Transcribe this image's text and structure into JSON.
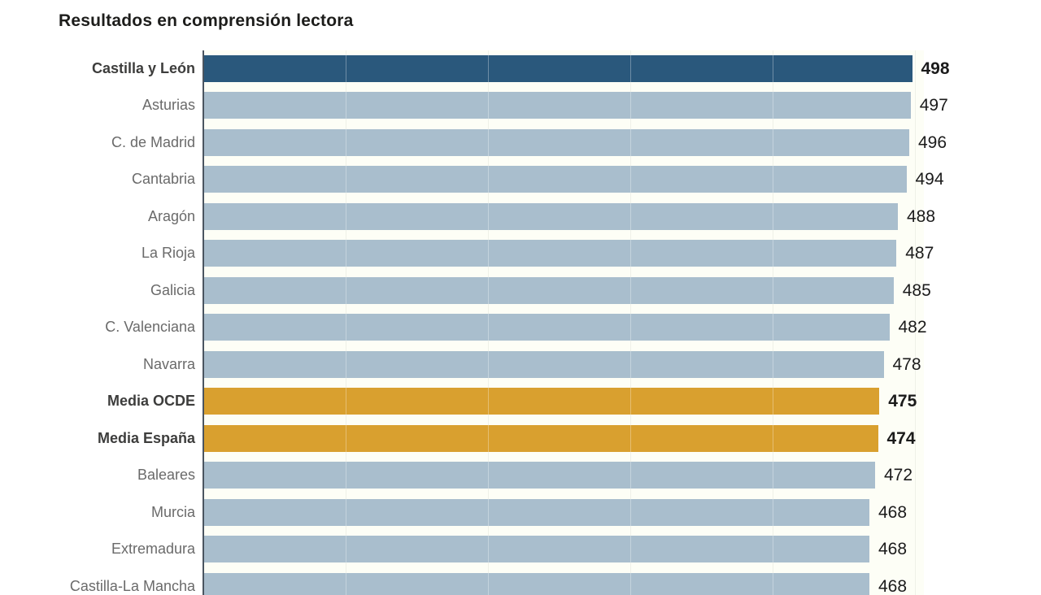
{
  "title": "Resultados en comprensión lectora",
  "colors": {
    "bar_region": "#a9becd",
    "bar_leader": "#2a587c",
    "bar_media": "#d9a02f",
    "axis_line": "#4b5560",
    "gridline": "#e7eade",
    "category_label": "#6a6a6a",
    "category_label_emphasis": "#3d3d3c",
    "value_label": "#1b1b1b",
    "title_color": "#1d1d1b"
  },
  "chart_data": {
    "type": "bar",
    "orientation": "horizontal",
    "title": "Resultados en comprensión lectora",
    "xlabel": "",
    "ylabel": "",
    "xlim": [
      0,
      510
    ],
    "gridlines": [
      100,
      200,
      300,
      400,
      500
    ],
    "grid": "vertical-light",
    "legend": "none",
    "value_labels": "end-of-bar",
    "categories": [
      "Castilla y León",
      "Asturias",
      "C. de Madrid",
      "Cantabria",
      "Aragón",
      "La Rioja",
      "Galicia",
      "C. Valenciana",
      "Navarra",
      "Media OCDE",
      "Media España",
      "Baleares",
      "Murcia",
      "Extremadura",
      "Castilla-La Mancha"
    ],
    "values": [
      498,
      497,
      496,
      494,
      488,
      487,
      485,
      482,
      478,
      475,
      474,
      472,
      468,
      468,
      468
    ],
    "emphasis": [
      "leader",
      "region",
      "region",
      "region",
      "region",
      "region",
      "region",
      "region",
      "region",
      "media",
      "media",
      "region",
      "region",
      "region",
      "region"
    ]
  }
}
